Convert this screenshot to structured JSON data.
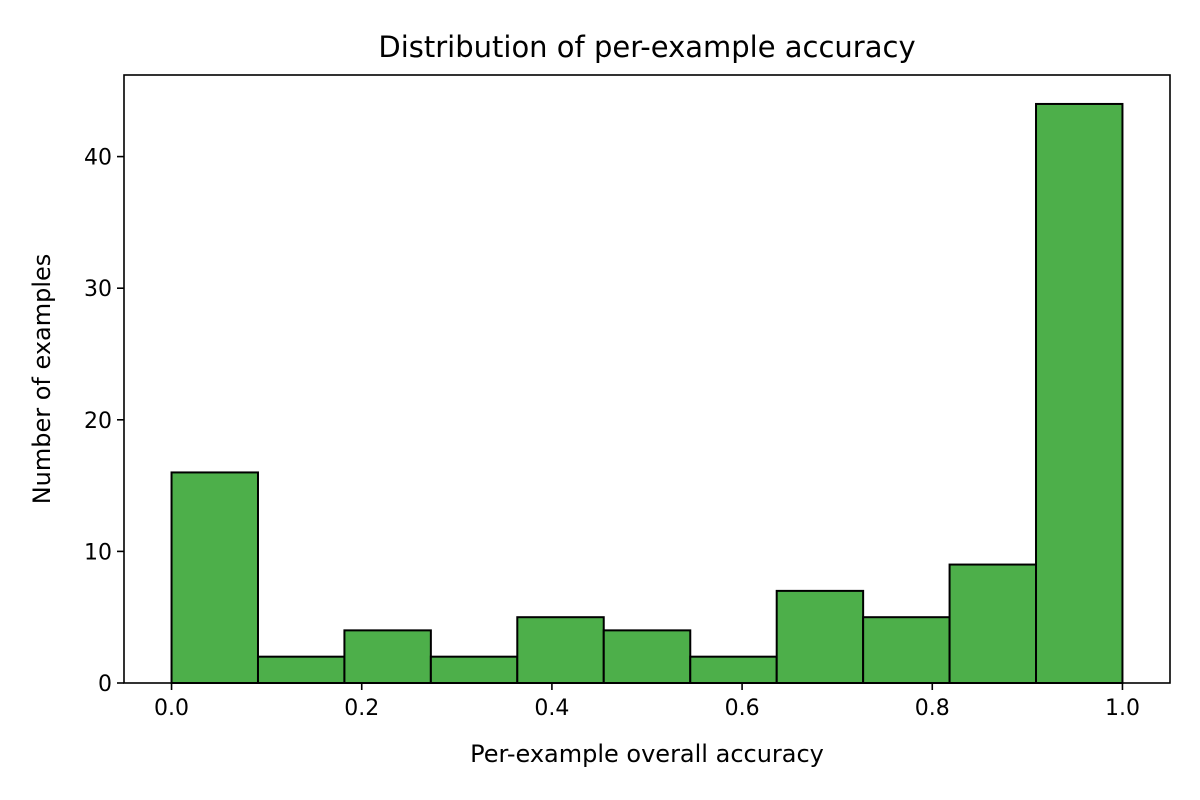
{
  "chart_data": {
    "type": "bar",
    "title": "Distribution of per-example accuracy",
    "xlabel": "Per-example overall accuracy",
    "ylabel": "Number of examples",
    "bin_edges": [
      0.0,
      0.0909,
      0.1818,
      0.2727,
      0.3636,
      0.4545,
      0.5455,
      0.6364,
      0.7273,
      0.8182,
      0.9091,
      1.0
    ],
    "values": [
      16,
      2,
      4,
      2,
      5,
      4,
      2,
      7,
      5,
      9,
      44
    ],
    "xlim": [
      -0.05,
      1.05
    ],
    "ylim": [
      0,
      46.2
    ],
    "x_ticks": [
      0.0,
      0.2,
      0.4,
      0.6,
      0.8,
      1.0
    ],
    "x_tick_labels": [
      "0.0",
      "0.2",
      "0.4",
      "0.6",
      "0.8",
      "1.0"
    ],
    "y_ticks": [
      0,
      10,
      20,
      30,
      40
    ],
    "y_tick_labels": [
      "0",
      "10",
      "20",
      "30",
      "40"
    ],
    "grid": false,
    "bar_color": "#4daf4a",
    "edge_color": "#000000"
  }
}
